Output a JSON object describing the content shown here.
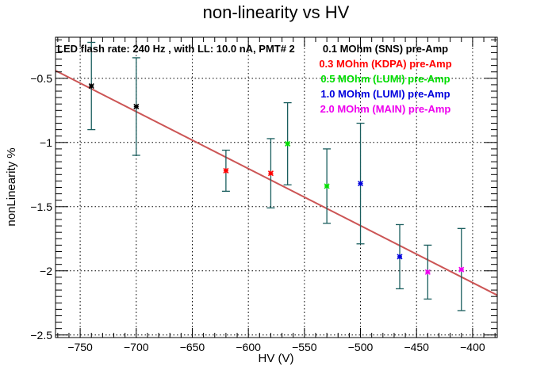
{
  "chart_data": {
    "type": "scatter",
    "title": "non-linearity vs HV",
    "xlabel": "HV (V)",
    "ylabel": "nonLinearity %",
    "xlim": [
      -772,
      -378
    ],
    "ylim": [
      -2.52,
      -0.18
    ],
    "grid": true,
    "x_ticks": [
      -750,
      -700,
      -650,
      -600,
      -550,
      -500,
      -450,
      -400
    ],
    "y_ticks": [
      -2.5,
      -2,
      -1.5,
      -1,
      -0.5
    ],
    "annotation": "LED flash rate: 240 Hz , with LL: 10.0 nA, PMT# 2",
    "legend_position": "top-right",
    "error_bar_color": "#1a5e5e",
    "fit_line": {
      "color": "#cc5555",
      "x": [
        -772,
        -378
      ],
      "y": [
        -0.44,
        -2.19
      ]
    },
    "series": [
      {
        "name": "0.1 MOhm (SNS) pre-Amp",
        "color": "#000000",
        "points": [
          {
            "x": -740,
            "y": -0.56,
            "err": 0.34
          },
          {
            "x": -700,
            "y": -0.72,
            "err": 0.38
          }
        ]
      },
      {
        "name": "0.3 MOhm (KDPA) pre-Amp",
        "color": "#ff0000",
        "points": [
          {
            "x": -620,
            "y": -1.22,
            "err": 0.16
          },
          {
            "x": -580,
            "y": -1.24,
            "err": 0.27
          }
        ]
      },
      {
        "name": "0.5 MOhm (LUMI) pre-Amp",
        "color": "#00dd00",
        "points": [
          {
            "x": -565,
            "y": -1.01,
            "err": 0.32
          },
          {
            "x": -530,
            "y": -1.34,
            "err": 0.29
          }
        ]
      },
      {
        "name": "1.0 MOhm (LUMI) pre-Amp",
        "color": "#0000dd",
        "points": [
          {
            "x": -500,
            "y": -1.32,
            "err": 0.47
          },
          {
            "x": -465,
            "y": -1.89,
            "err": 0.25
          }
        ]
      },
      {
        "name": "2.0 MOhm (MAIN) pre-Amp",
        "color": "#ee00ee",
        "points": [
          {
            "x": -440,
            "y": -2.01,
            "err": 0.21
          },
          {
            "x": -410,
            "y": -1.99,
            "err": 0.32
          }
        ]
      }
    ]
  }
}
